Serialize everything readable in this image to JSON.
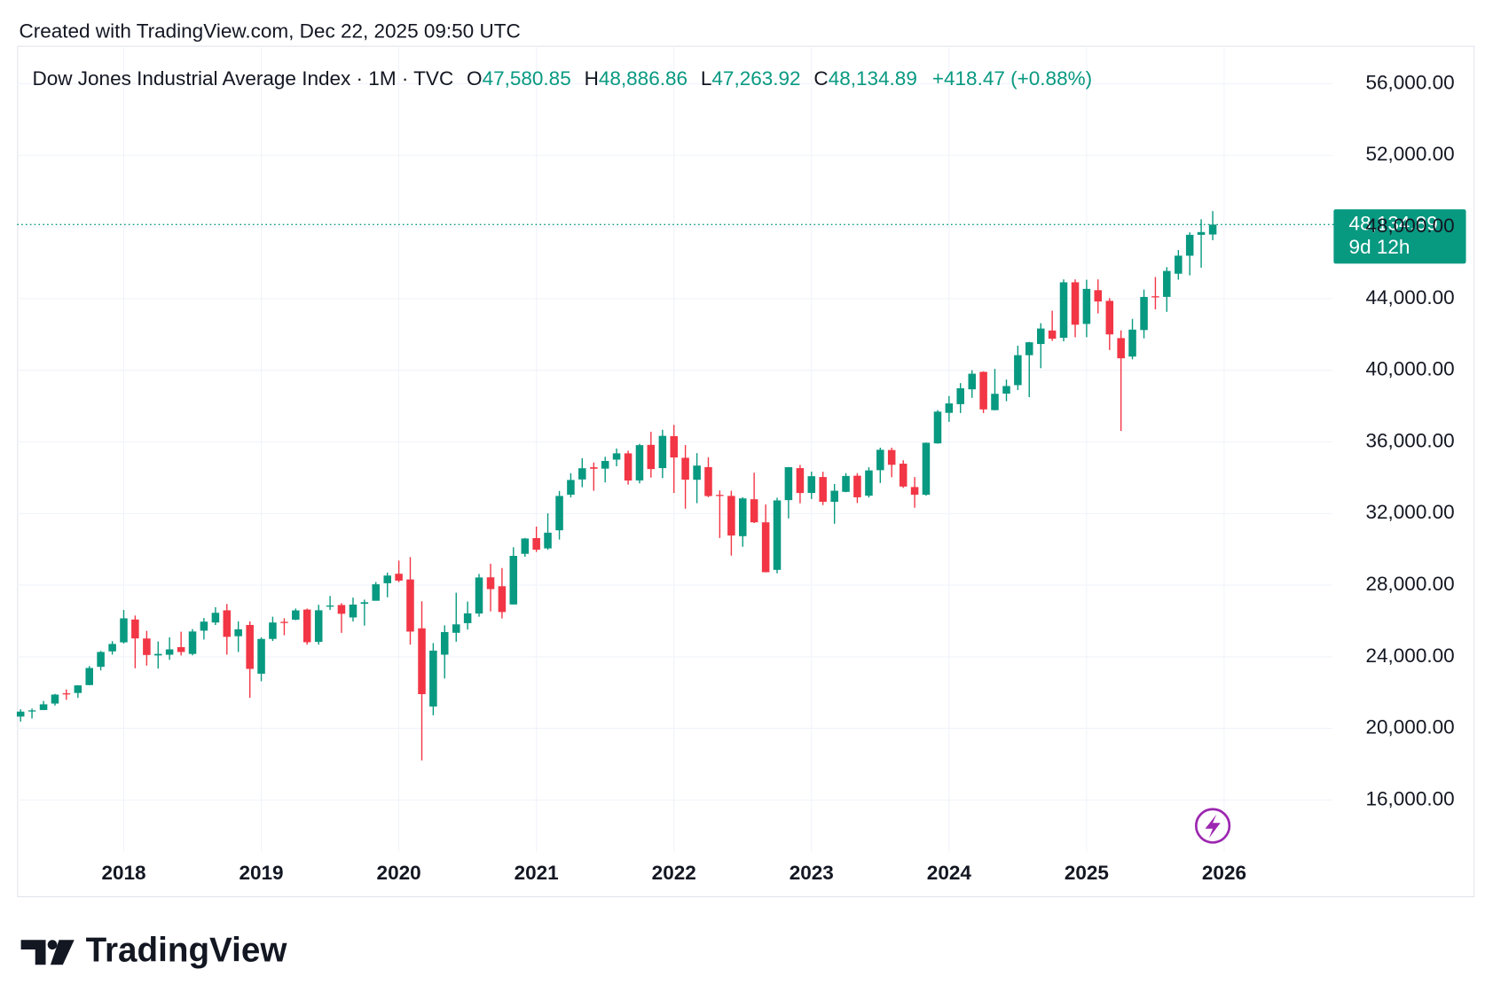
{
  "header": {
    "created": "Created with TradingView.com, Dec 22, 2025 09:50 UTC"
  },
  "chart_data": {
    "type": "candlestick",
    "title": "Dow Jones Industrial Average Index · 1M · TVC",
    "legend": [
      {
        "key": "O",
        "text": "47,580.85"
      },
      {
        "key": "H",
        "text": "48,886.86"
      },
      {
        "key": "L",
        "text": "47,263.92"
      },
      {
        "key": "C",
        "text": "48,134.89"
      }
    ],
    "change": "+418.47 (+0.88%)",
    "last_price": {
      "value": 48134.89,
      "label": "48,134.89"
    },
    "countdown": "9d 12h",
    "up_color": "#089981",
    "down_color": "#f23645",
    "xlim": [
      2017.225,
      2026.789
    ],
    "xticks": [
      2018,
      2019,
      2020,
      2021,
      2022,
      2023,
      2024,
      2025,
      2026
    ],
    "ylim": [
      13130,
      58120
    ],
    "yticks": [
      {
        "value": 16000,
        "label": "16,000.00"
      },
      {
        "value": 20000,
        "label": "20,000.00"
      },
      {
        "value": 24000,
        "label": "24,000.00"
      },
      {
        "value": 28000,
        "label": "28,000.00"
      },
      {
        "value": 32000,
        "label": "32,000.00"
      },
      {
        "value": 36000,
        "label": "36,000.00"
      },
      {
        "value": 40000,
        "label": "40,000.00"
      },
      {
        "value": 44000,
        "label": "44,000.00"
      },
      {
        "value": 48000,
        "label": "48,000.00"
      },
      {
        "value": 52000,
        "label": "52,000.00"
      },
      {
        "value": 56000,
        "label": "56,000.00"
      }
    ],
    "grid": true,
    "x": [
      2017.25,
      2017.333,
      2017.417,
      2017.5,
      2017.583,
      2017.667,
      2017.75,
      2017.833,
      2017.917,
      2018,
      2018.083,
      2018.167,
      2018.25,
      2018.333,
      2018.417,
      2018.5,
      2018.583,
      2018.667,
      2018.75,
      2018.833,
      2018.917,
      2019,
      2019.083,
      2019.167,
      2019.25,
      2019.333,
      2019.417,
      2019.5,
      2019.583,
      2019.667,
      2019.75,
      2019.833,
      2019.917,
      2020,
      2020.083,
      2020.167,
      2020.25,
      2020.333,
      2020.417,
      2020.5,
      2020.583,
      2020.667,
      2020.75,
      2020.833,
      2020.917,
      2021,
      2021.083,
      2021.167,
      2021.25,
      2021.333,
      2021.417,
      2021.5,
      2021.583,
      2021.667,
      2021.75,
      2021.833,
      2021.917,
      2022,
      2022.083,
      2022.167,
      2022.25,
      2022.333,
      2022.417,
      2022.5,
      2022.583,
      2022.667,
      2022.75,
      2022.833,
      2022.917,
      2023,
      2023.083,
      2023.167,
      2023.25,
      2023.333,
      2023.417,
      2023.5,
      2023.583,
      2023.667,
      2023.75,
      2023.833,
      2023.917,
      2024,
      2024.083,
      2024.167,
      2024.25,
      2024.333,
      2024.417,
      2024.5,
      2024.583,
      2024.667,
      2024.75,
      2024.833,
      2024.917,
      2025,
      2025.083,
      2025.167,
      2025.25,
      2025.333,
      2025.417,
      2025.5,
      2025.583,
      2025.667,
      2025.75,
      2025.833,
      2025.917
    ],
    "open": [
      20663,
      20962,
      21030,
      21392,
      21963,
      21982,
      22423,
      23442,
      24305,
      24809,
      26083,
      25024,
      24076,
      24117,
      24542,
      24161,
      25461,
      25916,
      26598,
      25151,
      25779,
      23058,
      24999,
      25953,
      26076,
      26640,
      24838,
      26818,
      26893,
      26198,
      26962,
      27131,
      28109,
      28639,
      28320,
      25591,
      21227,
      24120,
      25342,
      25880,
      26419,
      28439,
      27941,
      26925,
      29751,
      30628,
      30054,
      31065,
      33054,
      33904,
      34584,
      34507,
      35011,
      35361,
      33850,
      35834,
      34537,
      36321,
      35113,
      33886,
      34594,
      33042,
      32984,
      30737,
      32799,
      31510,
      28855,
      32750,
      34536,
      33150,
      34039,
      32656,
      33211,
      34112,
      32997,
      34422,
      35547,
      34784,
      33480,
      33051,
      35917,
      37623,
      38108,
      38937,
      39911,
      37774,
      38697,
      39170,
      40843,
      41466,
      42220,
      41816,
      44913,
      42588,
      44472,
      43876,
      41796,
      40765,
      42247,
      44133,
      44097,
      45392,
      46397,
      47562,
      47580.85
    ],
    "high": [
      21070,
      21112,
      21535,
      21930,
      22179,
      22420,
      23485,
      24328,
      24876,
      26617,
      26307,
      25450,
      24858,
      25087,
      25402,
      25552,
      26168,
      26770,
      26951,
      25980,
      25980,
      25086,
      26241,
      26155,
      26696,
      26696,
      26907,
      27398,
      26994,
      27306,
      27195,
      28175,
      28702,
      29374,
      29568,
      27102,
      24765,
      25758,
      27581,
      27087,
      28630,
      29199,
      28958,
      30117,
      30638,
      31272,
      32010,
      33259,
      34256,
      35091,
      34849,
      35172,
      35631,
      35510,
      35892,
      36565,
      36679,
      36952,
      35824,
      35372,
      35144,
      33290,
      33272,
      32910,
      34281,
      32505,
      32882,
      34595,
      34712,
      34342,
      34335,
      33650,
      34257,
      34257,
      34589,
      35679,
      35679,
      34977,
      34040,
      35967,
      37778,
      38562,
      39282,
      40004,
      39939,
      40078,
      39480,
      41376,
      41585,
      42628,
      43325,
      45074,
      45074,
      45054,
      45073,
      44033,
      42229,
      42870,
      44507,
      45206,
      45757,
      46714,
      47700,
      48431,
      48886.86
    ],
    "low": [
      20379,
      20554,
      21030,
      21279,
      21600,
      21709,
      22416,
      23242,
      24125,
      24741,
      23360,
      23509,
      23345,
      23831,
      24077,
      24083,
      24965,
      25777,
      24122,
      24268,
      21713,
      22638,
      24883,
      25208,
      26045,
      24681,
      24680,
      26615,
      25339,
      25978,
      25743,
      27131,
      27325,
      28170,
      24681,
      18214,
      20735,
      22790,
      24844,
      25524,
      26238,
      26537,
      26143,
      26925,
      29588,
      29857,
      29977,
      30547,
      32900,
      33473,
      33271,
      33741,
      34640,
      33613,
      33683,
      34006,
      33979,
      33150,
      32272,
      32578,
      32913,
      30635,
      29653,
      30143,
      31467,
      28715,
      28660,
      31727,
      32573,
      32812,
      32475,
      31430,
      33191,
      32586,
      32893,
      33706,
      34029,
      33433,
      32327,
      32996,
      35899,
      37122,
      37612,
      38460,
      37612,
      37765,
      38273,
      38894,
      38499,
      40116,
      41642,
      41616,
      41845,
      41844,
      43175,
      41132,
      36612,
      40609,
      41783,
      43400,
      43260,
      45060,
      45300,
      45728,
      47263.92
    ],
    "close": [
      20941,
      21009,
      21350,
      21891,
      21948,
      22405,
      23377,
      24272,
      24719,
      26149,
      25029,
      24103,
      24163,
      24416,
      24271,
      25415,
      25965,
      26458,
      25116,
      25538,
      23327,
      24999,
      25916,
      25929,
      26593,
      24815,
      26600,
      26864,
      26403,
      26917,
      27046,
      28051,
      28538,
      28256,
      25409,
      21917,
      24346,
      25383,
      25813,
      26428,
      28430,
      27782,
      26502,
      29638,
      30606,
      29983,
      30932,
      32982,
      33875,
      34529,
      34503,
      34935,
      35361,
      33844,
      35820,
      34484,
      36338,
      35132,
      33893,
      34678,
      32977,
      32990,
      30775,
      32845,
      31510,
      28726,
      32733,
      34590,
      33147,
      34086,
      32657,
      33274,
      34098,
      32908,
      34408,
      35560,
      34722,
      33508,
      33053,
      35951,
      37690,
      38150,
      38996,
      39807,
      37816,
      38686,
      39119,
      40843,
      41563,
      42330,
      41763,
      44911,
      42544,
      44545,
      43841,
      42002,
      40669,
      42270,
      44095,
      44131,
      45545,
      46398,
      47563,
      47716,
      48134.89
    ]
  },
  "footer": {
    "brand": "TradingView"
  }
}
